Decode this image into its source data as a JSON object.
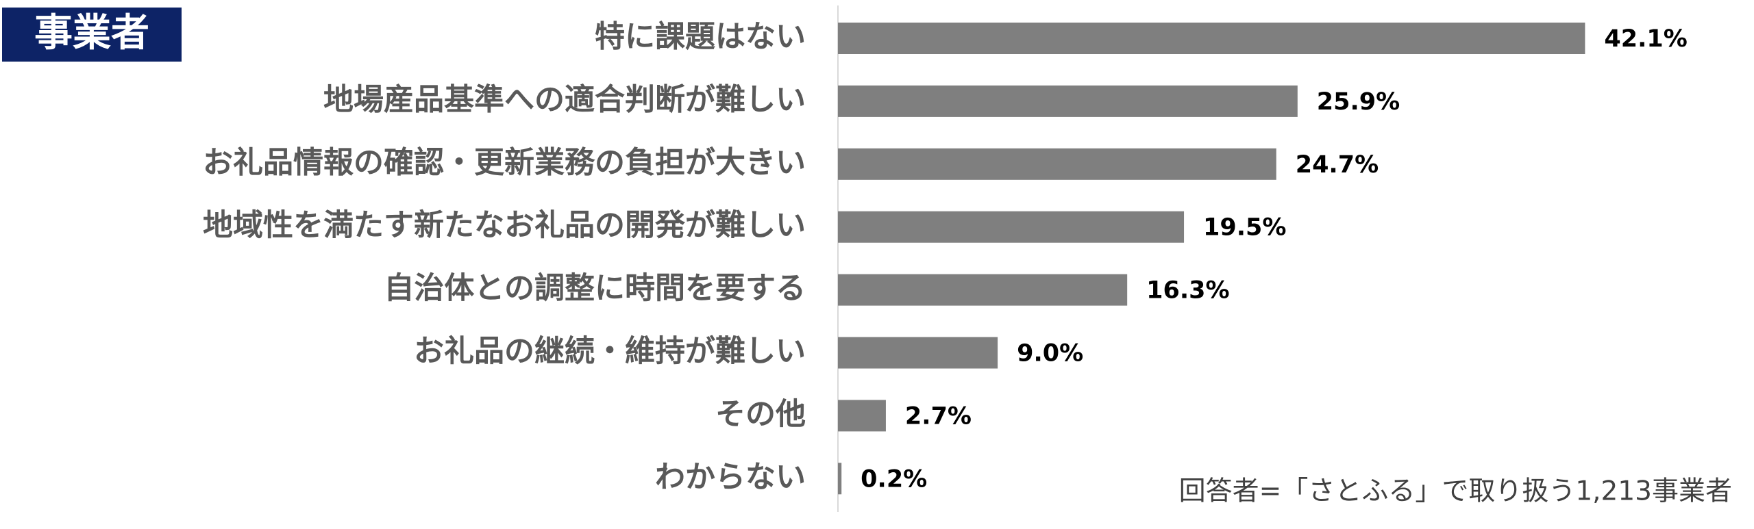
{
  "chart_data": {
    "type": "bar",
    "orientation": "horizontal",
    "badge": "事業者",
    "note": "回答者=「さとふる」で取り扱う1,213事業者",
    "categories": [
      "特に課題はない",
      "地場産品基準への適合判断が難しい",
      "お礼品情報の確認・更新業務の負担が大きい",
      "地域性を満たす新たなお礼品の開発が難しい",
      "自治体との調整に時間を要する",
      "お礼品の継続・維持が難しい",
      "その他",
      "わからない"
    ],
    "values": [
      42.1,
      25.9,
      24.7,
      19.5,
      16.3,
      9.0,
      2.7,
      0.2
    ],
    "value_labels": [
      "42.1%",
      "25.9%",
      "24.7%",
      "19.5%",
      "16.3%",
      "9.0%",
      "2.7%",
      "0.2%"
    ],
    "color": "#7f7f7f"
  }
}
